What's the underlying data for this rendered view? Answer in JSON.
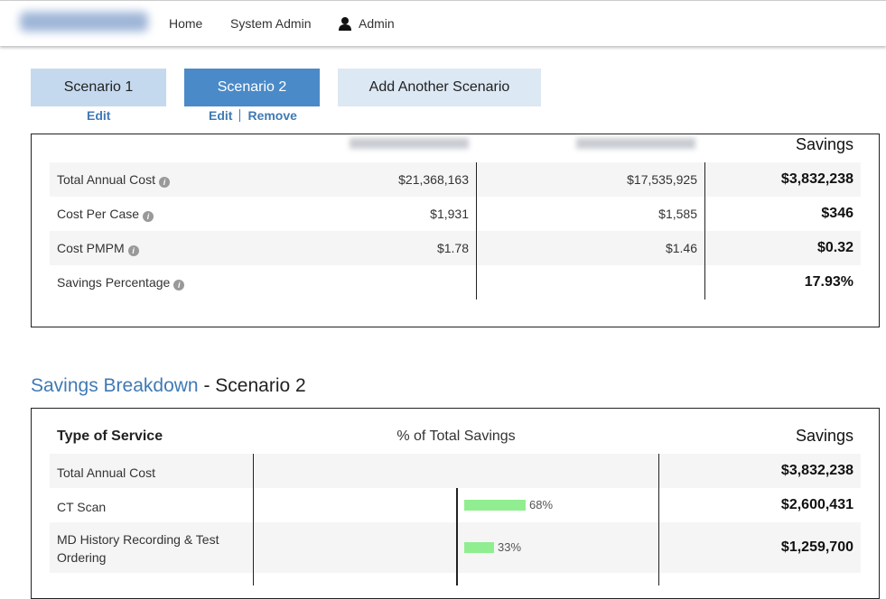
{
  "nav": {
    "links": [
      "Home",
      "System Admin",
      "Admin"
    ]
  },
  "scenarios": [
    {
      "name": "Scenario 1",
      "links": [
        "Edit"
      ]
    },
    {
      "name": "Scenario 2",
      "links": [
        "Edit",
        "Remove"
      ]
    }
  ],
  "add_scenario": "Add Another Scenario",
  "comparison": {
    "savings_header": "Savings",
    "rows": [
      {
        "label": "Total Annual Cost",
        "scenario_1": "$21,368,163",
        "scenario_2": "$17,535,925",
        "savings": "$3,832,238"
      },
      {
        "label": "Cost Per Case",
        "scenario_1": "$1,931",
        "scenario_2": "$1,585",
        "savings": "$346"
      },
      {
        "label": "Cost PMPM",
        "scenario_1": "$1.78",
        "scenario_2": "$1.46",
        "savings": "$0.32"
      },
      {
        "label": "Savings Percentage",
        "savings": "17.93%"
      }
    ]
  },
  "breakdown": {
    "title": "Savings Breakdown",
    "subtitle": "- Scenario 2",
    "headers": {
      "type": "Type of Service",
      "percent": "% of Total Savings",
      "savings": "Savings"
    },
    "rows": [
      {
        "label": "Total Annual Cost",
        "savings": "$3,832,238"
      },
      {
        "label": "CT Scan",
        "percent": 68,
        "percent_label": "68%",
        "savings": "$2,600,431"
      },
      {
        "label": "MD History Recording & Test Ordering",
        "percent": 33,
        "percent_label": "33%",
        "savings": "$1,259,700"
      }
    ]
  }
}
